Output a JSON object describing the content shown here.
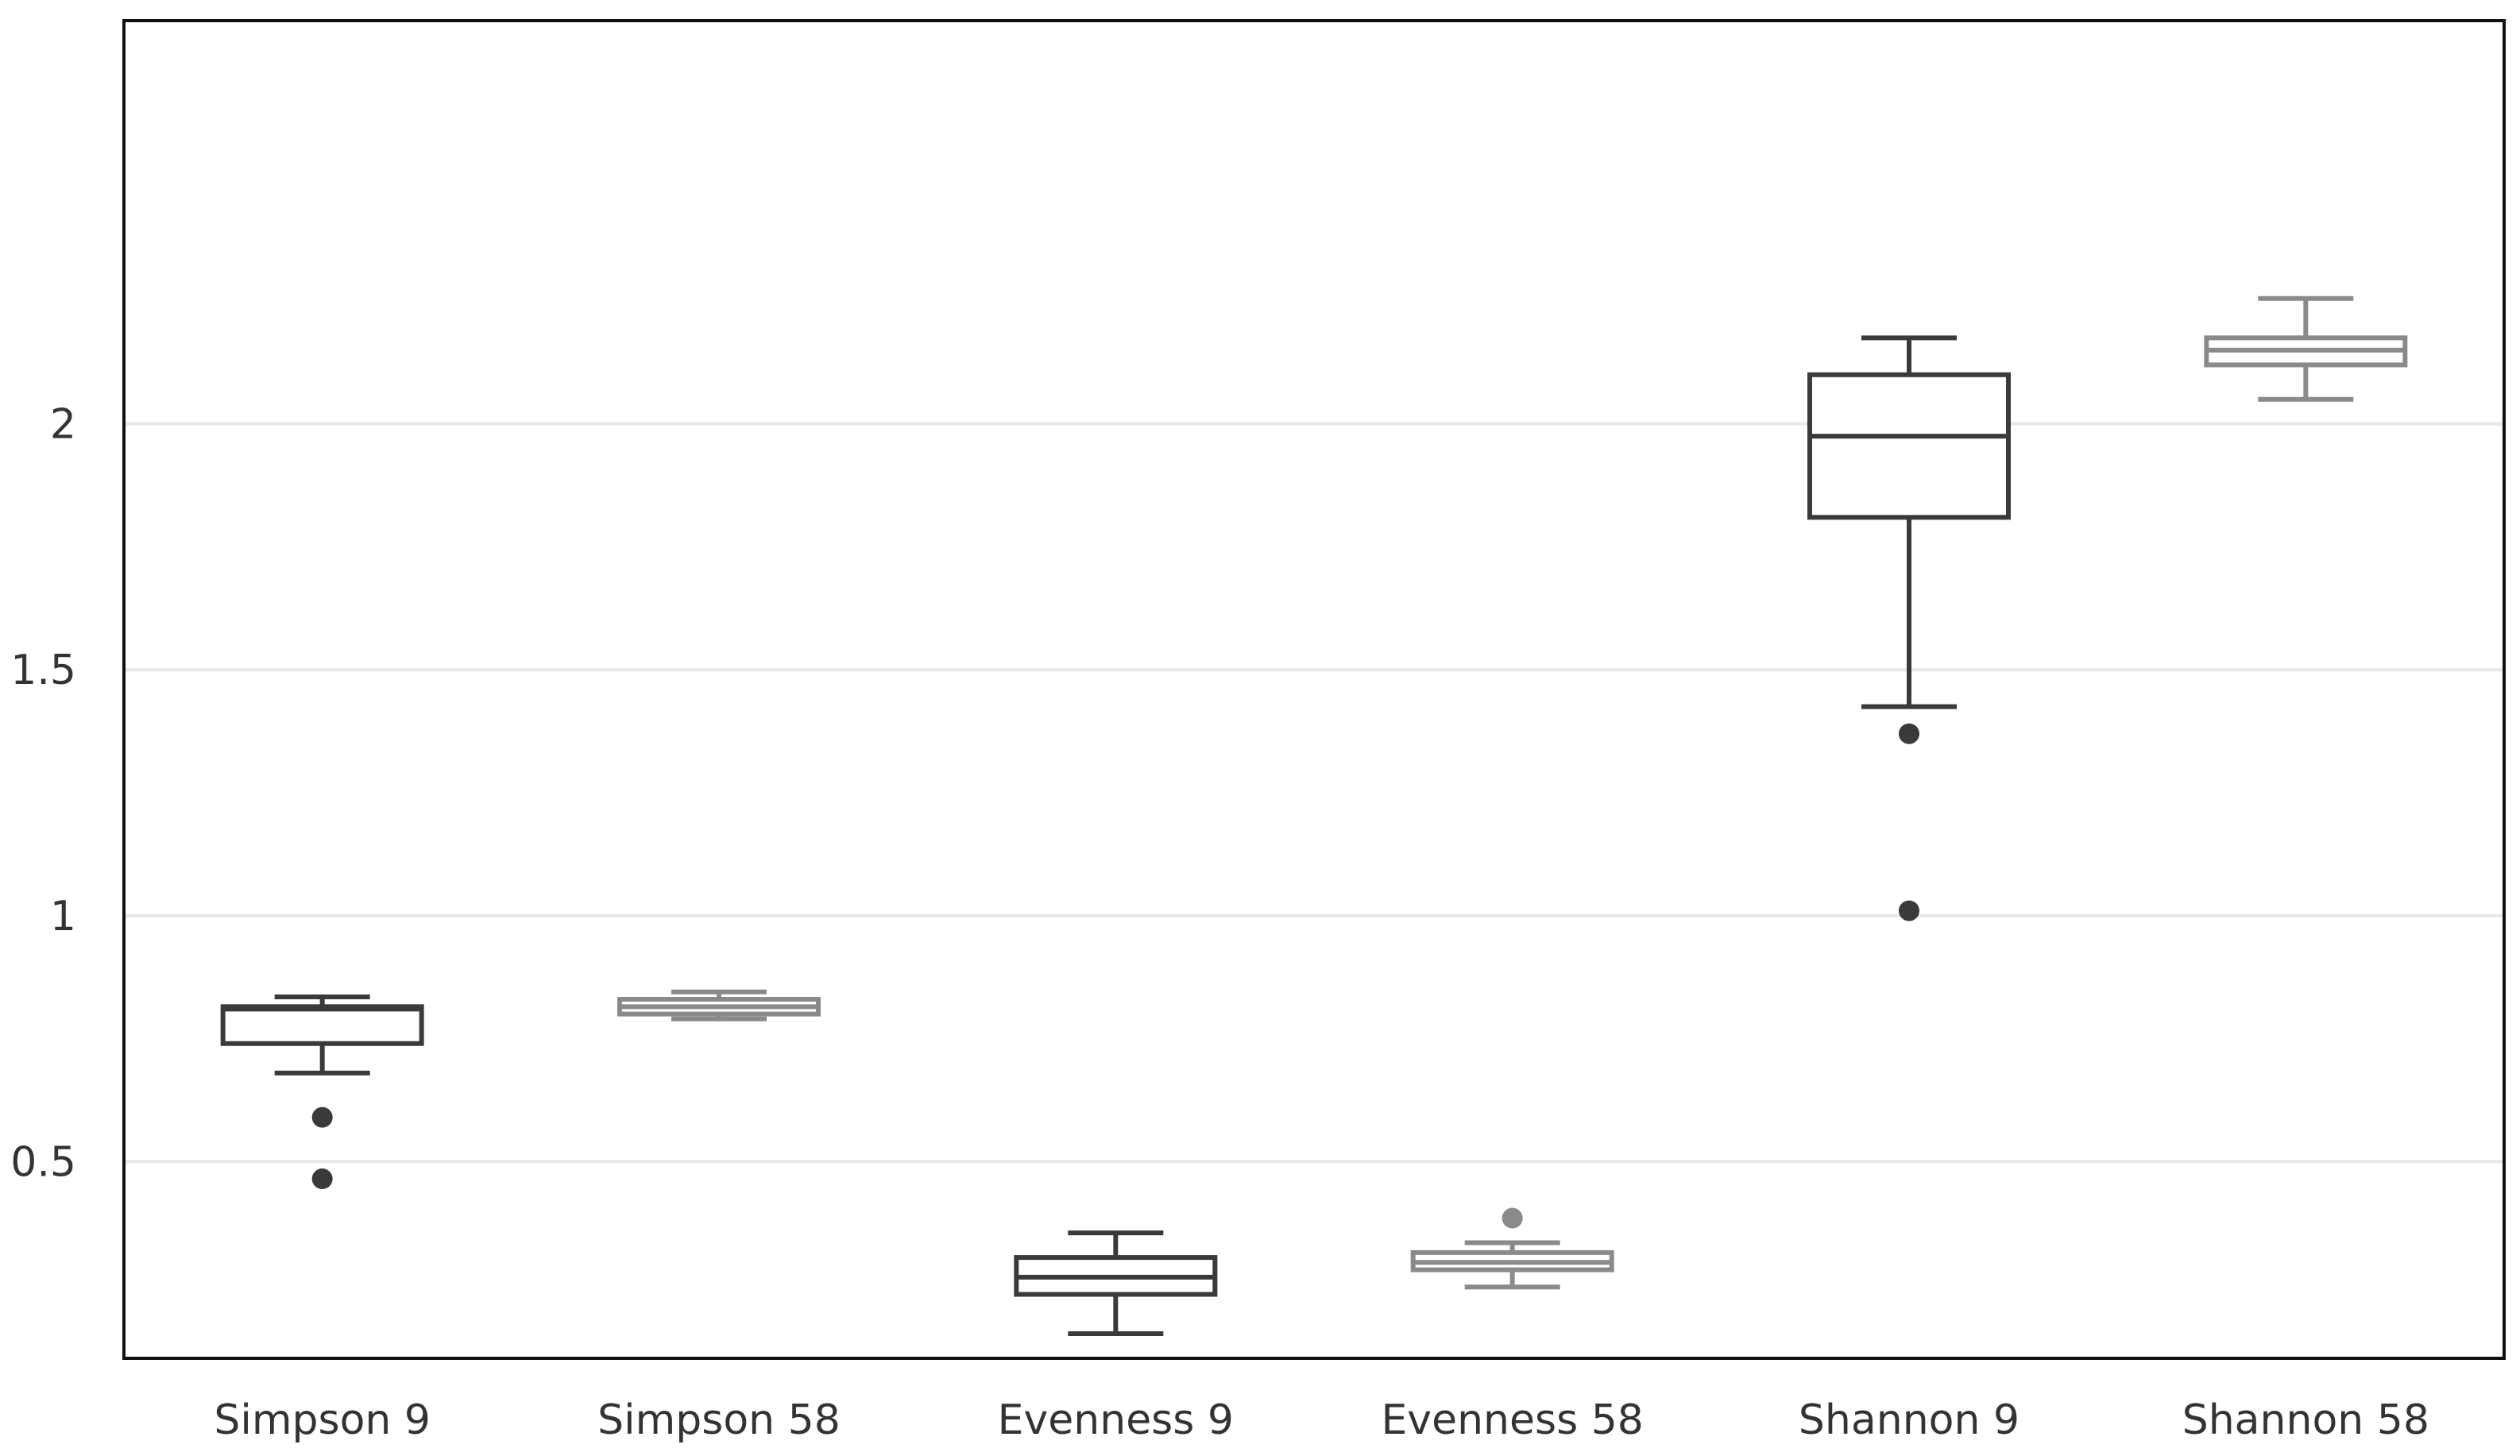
{
  "chart_data": {
    "type": "box",
    "title": "",
    "xlabel": "",
    "ylabel": "",
    "ylim": [
      0.1,
      2.82
    ],
    "yticks": [
      0.5,
      1,
      1.5,
      2
    ],
    "ytick_labels": [
      "0.5",
      "1",
      "1.5",
      "2"
    ],
    "grid": true,
    "categories": [
      "Simpson 9",
      "Simpson 58",
      "Evenness 9",
      "Evenness 58",
      "Shannon 9",
      "Shannon 58"
    ],
    "series": [
      {
        "name": "Simpson 9",
        "color": "#3a3a3a",
        "min": 0.68,
        "q1": 0.74,
        "median": 0.81,
        "q3": 0.815,
        "max": 0.835,
        "outliers": [
          0.59,
          0.465
        ]
      },
      {
        "name": "Simpson 58",
        "color": "#8a8a8a",
        "min": 0.79,
        "q1": 0.8,
        "median": 0.815,
        "q3": 0.83,
        "max": 0.845,
        "outliers": []
      },
      {
        "name": "Evenness 9",
        "color": "#3a3a3a",
        "min": 0.15,
        "q1": 0.23,
        "median": 0.265,
        "q3": 0.305,
        "max": 0.355,
        "outliers": []
      },
      {
        "name": "Evenness 58",
        "color": "#8a8a8a",
        "min": 0.245,
        "q1": 0.28,
        "median": 0.295,
        "q3": 0.315,
        "max": 0.335,
        "outliers": [
          0.385
        ]
      },
      {
        "name": "Shannon 9",
        "color": "#3a3a3a",
        "min": 1.425,
        "q1": 1.81,
        "median": 1.975,
        "q3": 2.1,
        "max": 2.175,
        "outliers": [
          1.37,
          1.01
        ]
      },
      {
        "name": "Shannon 58",
        "color": "#8a8a8a",
        "min": 2.05,
        "q1": 2.12,
        "median": 2.15,
        "q3": 2.175,
        "max": 2.255,
        "outliers": []
      }
    ]
  }
}
